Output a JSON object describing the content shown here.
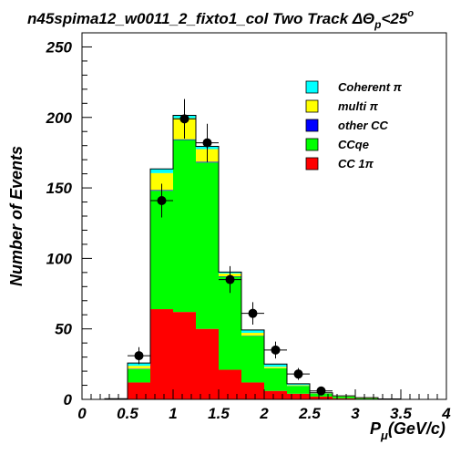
{
  "chart_data": {
    "type": "bar",
    "stacked": true,
    "title": "n45spima12_w0011_2_fixto1_col Two Track ΔΘ",
    "title_sub": "p",
    "title_tail": "<25",
    "title_sup": "o",
    "ylabel": "Number of Events",
    "xlabel": "P",
    "xlabel_sub": "μ",
    "xlabel_tail": "(GeV/c)",
    "xlim": [
      0,
      4
    ],
    "ylim": [
      0,
      260
    ],
    "xticks": [
      {
        "v": 0,
        "label": "0"
      },
      {
        "v": 0.5,
        "label": "0.5"
      },
      {
        "v": 1,
        "label": "1"
      },
      {
        "v": 1.5,
        "label": "1.5"
      },
      {
        "v": 2,
        "label": "2"
      },
      {
        "v": 2.5,
        "label": "2.5"
      },
      {
        "v": 3,
        "label": "3"
      },
      {
        "v": 3.5,
        "label": "3.5"
      },
      {
        "v": 4,
        "label": "4"
      }
    ],
    "yticks": [
      {
        "v": 0,
        "label": "0"
      },
      {
        "v": 50,
        "label": "50"
      },
      {
        "v": 100,
        "label": "100"
      },
      {
        "v": 150,
        "label": "150"
      },
      {
        "v": 200,
        "label": "200"
      },
      {
        "v": 250,
        "label": "250"
      }
    ],
    "bin_edges": [
      0,
      0.25,
      0.5,
      0.75,
      1.0,
      1.25,
      1.5,
      1.75,
      2.0,
      2.25,
      2.5,
      2.75,
      3.0,
      3.25,
      3.5,
      3.75,
      4.0
    ],
    "series": [
      {
        "name": "CC 1π",
        "color": "#ff0000",
        "values": [
          0,
          0.3,
          12,
          64,
          62,
          50,
          21,
          12,
          6,
          4,
          2,
          0.8,
          0.3,
          0.1,
          0,
          0
        ]
      },
      {
        "name": "CCqe",
        "color": "#00ff00",
        "values": [
          0,
          0.2,
          9.5,
          84,
          122,
          118,
          66,
          33,
          16,
          5.5,
          2,
          1.2,
          0.5,
          0.2,
          0,
          0
        ]
      },
      {
        "name": "other CC",
        "color": "#0000ff",
        "values": [
          0,
          0,
          0.3,
          0.5,
          0.5,
          0.5,
          0.3,
          0.2,
          0.1,
          0.1,
          0,
          0,
          0,
          0,
          0,
          0
        ]
      },
      {
        "name": "multi π",
        "color": "#ffff00",
        "values": [
          0,
          0,
          2,
          12,
          15,
          9,
          2,
          2,
          1,
          0.5,
          0.2,
          0.2,
          0.2,
          0,
          0,
          0
        ]
      },
      {
        "name": "Coherent π",
        "color": "#00ffff",
        "values": [
          0,
          0,
          2,
          3,
          2,
          2,
          1,
          2,
          2,
          1,
          0.5,
          0.3,
          0.2,
          0,
          0,
          0
        ]
      }
    ],
    "data_points": [
      {
        "x": 0.625,
        "y": 31,
        "err": 6
      },
      {
        "x": 0.875,
        "y": 141,
        "err": 12
      },
      {
        "x": 1.125,
        "y": 199,
        "err": 14
      },
      {
        "x": 1.375,
        "y": 182,
        "err": 13.5
      },
      {
        "x": 1.625,
        "y": 85,
        "err": 9.5
      },
      {
        "x": 1.875,
        "y": 61,
        "err": 8
      },
      {
        "x": 2.125,
        "y": 35,
        "err": 6
      },
      {
        "x": 2.375,
        "y": 18,
        "err": 4.2
      },
      {
        "x": 2.625,
        "y": 6,
        "err": 2.4
      }
    ]
  },
  "legend": [
    {
      "label": "Coherent π",
      "color": "#00ffff"
    },
    {
      "label": "multi π",
      "color": "#ffff00"
    },
    {
      "label": "other CC",
      "color": "#0000ff"
    },
    {
      "label": "CCqe",
      "color": "#00ff00"
    },
    {
      "label": "CC 1π",
      "color": "#ff0000"
    }
  ]
}
